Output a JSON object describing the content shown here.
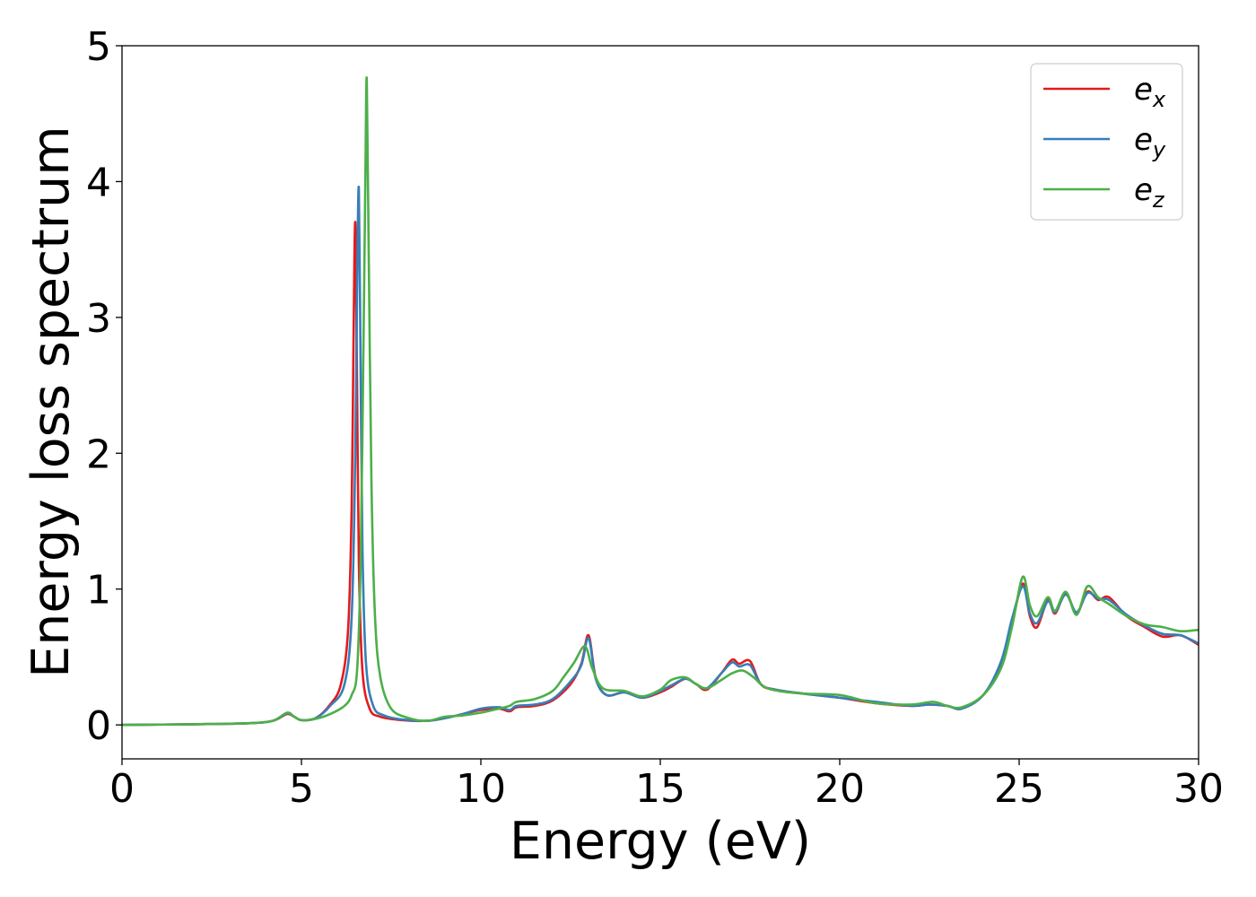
{
  "chart_data": {
    "type": "line",
    "title": "",
    "xlabel": "Energy (eV)",
    "ylabel": "Energy loss spectrum",
    "xlim": [
      0,
      30
    ],
    "ylim": [
      -0.25,
      5
    ],
    "xticks": [
      0,
      5,
      10,
      15,
      20,
      25,
      30
    ],
    "xtick_labels": [
      "0",
      "5",
      "10",
      "15",
      "20",
      "25",
      "30"
    ],
    "yticks": [
      0,
      1,
      2,
      3,
      4,
      5
    ],
    "ytick_labels": [
      "0",
      "1",
      "2",
      "3",
      "4",
      "5"
    ],
    "grid": false,
    "legend_position": "top-right",
    "series": [
      {
        "name": "e_x",
        "base": "e",
        "sub": "x",
        "color": "#e41a1c",
        "points": [
          [
            0,
            0
          ],
          [
            2,
            0.005
          ],
          [
            3.5,
            0.012
          ],
          [
            4.2,
            0.03
          ],
          [
            4.6,
            0.08
          ],
          [
            4.8,
            0.06
          ],
          [
            5.0,
            0.035
          ],
          [
            5.4,
            0.05
          ],
          [
            5.8,
            0.15
          ],
          [
            6.1,
            0.3
          ],
          [
            6.3,
            0.7
          ],
          [
            6.4,
            1.6
          ],
          [
            6.45,
            2.8
          ],
          [
            6.5,
            3.7
          ],
          [
            6.55,
            2.5
          ],
          [
            6.6,
            1.2
          ],
          [
            6.7,
            0.4
          ],
          [
            6.9,
            0.12
          ],
          [
            7.2,
            0.06
          ],
          [
            7.8,
            0.035
          ],
          [
            8.5,
            0.03
          ],
          [
            9.0,
            0.05
          ],
          [
            9.5,
            0.08
          ],
          [
            10.0,
            0.11
          ],
          [
            10.5,
            0.12
          ],
          [
            10.8,
            0.1
          ],
          [
            11.0,
            0.13
          ],
          [
            11.5,
            0.14
          ],
          [
            12.0,
            0.18
          ],
          [
            12.5,
            0.3
          ],
          [
            12.8,
            0.45
          ],
          [
            13.0,
            0.66
          ],
          [
            13.2,
            0.35
          ],
          [
            13.5,
            0.22
          ],
          [
            14.0,
            0.24
          ],
          [
            14.5,
            0.2
          ],
          [
            15.0,
            0.24
          ],
          [
            15.3,
            0.28
          ],
          [
            15.7,
            0.34
          ],
          [
            16.0,
            0.3
          ],
          [
            16.3,
            0.26
          ],
          [
            16.7,
            0.38
          ],
          [
            17.0,
            0.48
          ],
          [
            17.2,
            0.45
          ],
          [
            17.5,
            0.47
          ],
          [
            17.8,
            0.3
          ],
          [
            18.2,
            0.26
          ],
          [
            19.0,
            0.23
          ],
          [
            20.0,
            0.2
          ],
          [
            21.0,
            0.16
          ],
          [
            22.0,
            0.14
          ],
          [
            22.5,
            0.15
          ],
          [
            23.0,
            0.14
          ],
          [
            23.4,
            0.12
          ],
          [
            24.0,
            0.22
          ],
          [
            24.5,
            0.45
          ],
          [
            24.8,
            0.75
          ],
          [
            25.1,
            1.04
          ],
          [
            25.3,
            0.8
          ],
          [
            25.5,
            0.72
          ],
          [
            25.8,
            0.92
          ],
          [
            26.0,
            0.82
          ],
          [
            26.3,
            0.97
          ],
          [
            26.6,
            0.82
          ],
          [
            26.9,
            0.98
          ],
          [
            27.2,
            0.92
          ],
          [
            27.5,
            0.94
          ],
          [
            28.0,
            0.8
          ],
          [
            28.5,
            0.72
          ],
          [
            29.0,
            0.65
          ],
          [
            29.5,
            0.66
          ],
          [
            30.0,
            0.59
          ]
        ]
      },
      {
        "name": "e_y",
        "base": "e",
        "sub": "y",
        "color": "#377eb8",
        "points": [
          [
            0,
            0
          ],
          [
            2,
            0.005
          ],
          [
            3.5,
            0.012
          ],
          [
            4.2,
            0.03
          ],
          [
            4.6,
            0.085
          ],
          [
            4.8,
            0.06
          ],
          [
            5.0,
            0.035
          ],
          [
            5.4,
            0.05
          ],
          [
            5.8,
            0.14
          ],
          [
            6.2,
            0.3
          ],
          [
            6.4,
            0.8
          ],
          [
            6.5,
            2.0
          ],
          [
            6.55,
            3.2
          ],
          [
            6.6,
            3.95
          ],
          [
            6.65,
            2.6
          ],
          [
            6.7,
            1.3
          ],
          [
            6.8,
            0.45
          ],
          [
            7.0,
            0.14
          ],
          [
            7.3,
            0.07
          ],
          [
            7.8,
            0.04
          ],
          [
            8.5,
            0.03
          ],
          [
            9.0,
            0.05
          ],
          [
            9.5,
            0.08
          ],
          [
            10.0,
            0.12
          ],
          [
            10.5,
            0.13
          ],
          [
            10.8,
            0.11
          ],
          [
            11.0,
            0.14
          ],
          [
            11.5,
            0.15
          ],
          [
            12.0,
            0.19
          ],
          [
            12.5,
            0.32
          ],
          [
            12.8,
            0.44
          ],
          [
            13.0,
            0.64
          ],
          [
            13.2,
            0.34
          ],
          [
            13.5,
            0.22
          ],
          [
            14.0,
            0.24
          ],
          [
            14.5,
            0.2
          ],
          [
            15.0,
            0.25
          ],
          [
            15.3,
            0.29
          ],
          [
            15.7,
            0.34
          ],
          [
            16.0,
            0.3
          ],
          [
            16.3,
            0.27
          ],
          [
            16.7,
            0.38
          ],
          [
            17.0,
            0.46
          ],
          [
            17.2,
            0.43
          ],
          [
            17.5,
            0.44
          ],
          [
            17.8,
            0.3
          ],
          [
            18.2,
            0.26
          ],
          [
            19.0,
            0.23
          ],
          [
            20.0,
            0.2
          ],
          [
            21.0,
            0.17
          ],
          [
            22.0,
            0.14
          ],
          [
            22.5,
            0.15
          ],
          [
            23.0,
            0.14
          ],
          [
            23.4,
            0.12
          ],
          [
            24.0,
            0.22
          ],
          [
            24.5,
            0.47
          ],
          [
            24.8,
            0.78
          ],
          [
            25.1,
            1.02
          ],
          [
            25.3,
            0.82
          ],
          [
            25.5,
            0.75
          ],
          [
            25.8,
            0.91
          ],
          [
            26.0,
            0.83
          ],
          [
            26.3,
            0.96
          ],
          [
            26.6,
            0.83
          ],
          [
            26.9,
            0.97
          ],
          [
            27.2,
            0.93
          ],
          [
            27.5,
            0.92
          ],
          [
            28.0,
            0.81
          ],
          [
            28.5,
            0.73
          ],
          [
            29.0,
            0.67
          ],
          [
            29.5,
            0.66
          ],
          [
            30.0,
            0.6
          ]
        ]
      },
      {
        "name": "e_z",
        "base": "e",
        "sub": "z",
        "color": "#4daf4a",
        "points": [
          [
            0,
            0
          ],
          [
            2,
            0.005
          ],
          [
            3.5,
            0.012
          ],
          [
            4.2,
            0.03
          ],
          [
            4.6,
            0.09
          ],
          [
            4.8,
            0.06
          ],
          [
            5.0,
            0.035
          ],
          [
            5.4,
            0.045
          ],
          [
            5.8,
            0.08
          ],
          [
            6.2,
            0.14
          ],
          [
            6.4,
            0.22
          ],
          [
            6.55,
            0.4
          ],
          [
            6.65,
            1.2
          ],
          [
            6.72,
            2.6
          ],
          [
            6.78,
            4.0
          ],
          [
            6.82,
            4.76
          ],
          [
            6.87,
            3.6
          ],
          [
            6.95,
            1.8
          ],
          [
            7.05,
            0.8
          ],
          [
            7.2,
            0.35
          ],
          [
            7.5,
            0.12
          ],
          [
            8.0,
            0.05
          ],
          [
            8.5,
            0.03
          ],
          [
            9.0,
            0.06
          ],
          [
            9.5,
            0.07
          ],
          [
            10.0,
            0.09
          ],
          [
            10.5,
            0.12
          ],
          [
            10.8,
            0.14
          ],
          [
            11.0,
            0.17
          ],
          [
            11.5,
            0.19
          ],
          [
            12.0,
            0.25
          ],
          [
            12.3,
            0.35
          ],
          [
            12.6,
            0.46
          ],
          [
            12.9,
            0.58
          ],
          [
            13.1,
            0.42
          ],
          [
            13.4,
            0.27
          ],
          [
            14.0,
            0.25
          ],
          [
            14.5,
            0.21
          ],
          [
            15.0,
            0.26
          ],
          [
            15.3,
            0.33
          ],
          [
            15.7,
            0.35
          ],
          [
            16.0,
            0.3
          ],
          [
            16.3,
            0.27
          ],
          [
            16.7,
            0.33
          ],
          [
            17.0,
            0.38
          ],
          [
            17.3,
            0.4
          ],
          [
            17.6,
            0.35
          ],
          [
            17.9,
            0.28
          ],
          [
            18.3,
            0.25
          ],
          [
            19.0,
            0.23
          ],
          [
            20.0,
            0.22
          ],
          [
            21.0,
            0.16
          ],
          [
            22.0,
            0.15
          ],
          [
            22.6,
            0.17
          ],
          [
            23.0,
            0.14
          ],
          [
            23.4,
            0.13
          ],
          [
            24.0,
            0.22
          ],
          [
            24.5,
            0.42
          ],
          [
            24.8,
            0.72
          ],
          [
            25.1,
            1.09
          ],
          [
            25.3,
            0.88
          ],
          [
            25.5,
            0.8
          ],
          [
            25.8,
            0.94
          ],
          [
            26.0,
            0.84
          ],
          [
            26.3,
            0.98
          ],
          [
            26.6,
            0.81
          ],
          [
            26.9,
            1.02
          ],
          [
            27.2,
            0.94
          ],
          [
            27.5,
            0.89
          ],
          [
            28.0,
            0.8
          ],
          [
            28.5,
            0.74
          ],
          [
            29.0,
            0.72
          ],
          [
            29.5,
            0.69
          ],
          [
            30.0,
            0.7
          ]
        ]
      }
    ]
  }
}
